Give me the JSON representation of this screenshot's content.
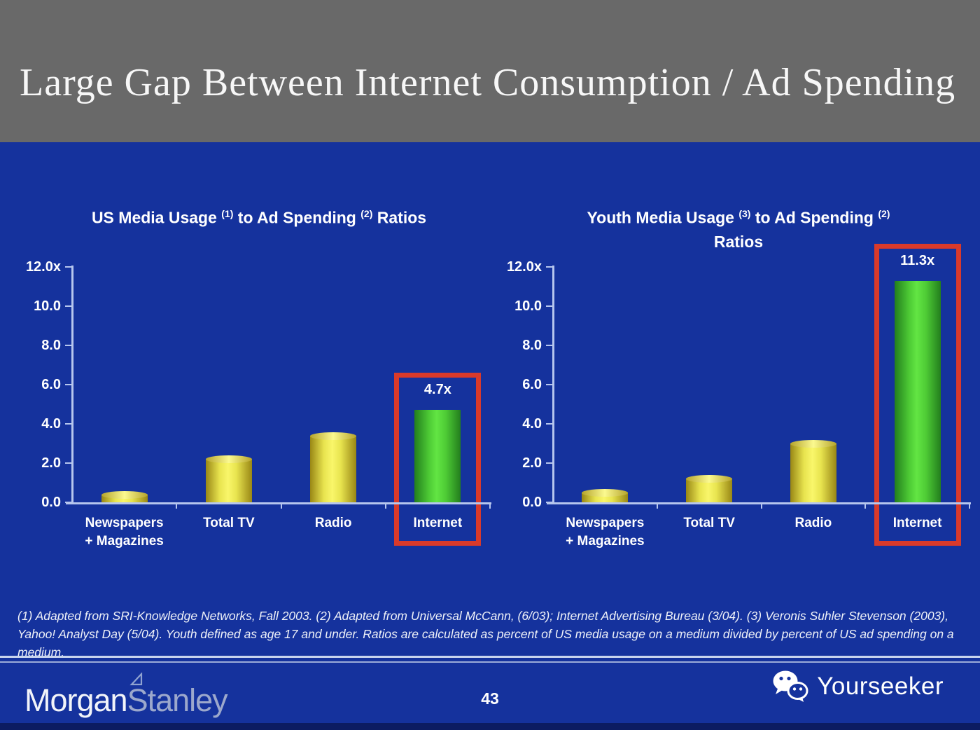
{
  "slide": {
    "title": "Large Gap Between Internet Consumption / Ad Spending",
    "page_number": "43",
    "footnote": "(1) Adapted from SRI-Knowledge Networks, Fall 2003.  (2) Adapted from Universal McCann, (6/03); Internet Advertising Bureau (3/04). (3) Veronis Suhler Stevenson (2003), Yahoo! Analyst Day (5/04).  Youth defined as age 17 and under.  Ratios are calculated as percent of US media usage on a medium divided by percent of US ad spending on a medium.",
    "brand": {
      "logo_part1": "Morgan",
      "logo_part2": "Stanley",
      "watermark": "Yourseeker"
    }
  },
  "colors": {
    "background": "#15329d",
    "header_gray": "#696969",
    "axis": "#b6c6ee",
    "bar_yellow_edge": "#998715",
    "bar_yellow_center": "#f9f66a",
    "bar_green_edge": "#237e1d",
    "bar_green_center": "#62e543",
    "highlight_red": "#d93a2b"
  },
  "chart_data": [
    {
      "type": "bar",
      "title": "US Media Usage (1) to Ad Spending (2) Ratios",
      "title_segments": [
        {
          "t": "US Media Usage "
        },
        {
          "sup": "(1)"
        },
        {
          "t": " to Ad Spending "
        },
        {
          "sup": "(2)"
        },
        {
          "t": " Ratios"
        }
      ],
      "categories": [
        [
          "Newspapers",
          "+ Magazines"
        ],
        [
          "Total TV"
        ],
        [
          "Radio"
        ],
        [
          "Internet"
        ]
      ],
      "values": [
        0.4,
        2.2,
        3.4,
        4.7
      ],
      "bar_labels": [
        "",
        "",
        "",
        "4.7x"
      ],
      "bar_colors": [
        "yellow",
        "yellow",
        "yellow",
        "green"
      ],
      "highlight_index": 3,
      "xlabel": "",
      "ylabel": "",
      "ylim": [
        0,
        12
      ],
      "grid": false,
      "legend": null,
      "yticks": [
        {
          "v": 12,
          "label": "12.0x"
        },
        {
          "v": 10,
          "label": "10.0"
        },
        {
          "v": 8,
          "label": "8.0"
        },
        {
          "v": 6,
          "label": "6.0"
        },
        {
          "v": 4,
          "label": "4.0"
        },
        {
          "v": 2,
          "label": "2.0"
        },
        {
          "v": 0,
          "label": "0.0"
        }
      ]
    },
    {
      "type": "bar",
      "title": "Youth Media Usage (3) to Ad Spending (2) Ratios",
      "title_segments": [
        {
          "t": "Youth Media Usage "
        },
        {
          "sup": "(3)"
        },
        {
          "t": " to Ad Spending "
        },
        {
          "sup": "(2)"
        },
        {
          "br": true
        },
        {
          "t": "Ratios"
        }
      ],
      "categories": [
        [
          "Newspapers",
          "+ Magazines"
        ],
        [
          "Total TV"
        ],
        [
          "Radio"
        ],
        [
          "Internet"
        ]
      ],
      "values": [
        0.5,
        1.2,
        3.0,
        11.3
      ],
      "bar_labels": [
        "",
        "",
        "",
        "11.3x"
      ],
      "bar_colors": [
        "yellow",
        "yellow",
        "yellow",
        "green"
      ],
      "highlight_index": 3,
      "xlabel": "",
      "ylabel": "",
      "ylim": [
        0,
        12
      ],
      "grid": false,
      "legend": null,
      "yticks": [
        {
          "v": 12,
          "label": "12.0x"
        },
        {
          "v": 10,
          "label": "10.0"
        },
        {
          "v": 8,
          "label": "8.0"
        },
        {
          "v": 6,
          "label": "6.0"
        },
        {
          "v": 4,
          "label": "4.0"
        },
        {
          "v": 2,
          "label": "2.0"
        },
        {
          "v": 0,
          "label": "0.0"
        }
      ]
    }
  ]
}
